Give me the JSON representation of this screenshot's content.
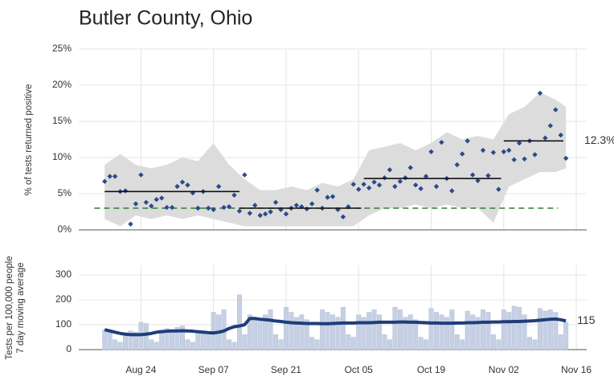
{
  "chart_data": [
    {
      "type": "scatter",
      "title": "Butler County, Ohio",
      "y_label": "% of tests returned positive",
      "x": [
        -7,
        -6,
        -5,
        -4,
        -3,
        -2,
        -1,
        0,
        1,
        2,
        3,
        4,
        5,
        6,
        7,
        8,
        9,
        10,
        11,
        12,
        13,
        14,
        15,
        16,
        17,
        18,
        19,
        20,
        21,
        22,
        23,
        24,
        25,
        26,
        27,
        28,
        29,
        30,
        31,
        32,
        33,
        34,
        35,
        36,
        37,
        38,
        39,
        40,
        41,
        42,
        43,
        44,
        45,
        46,
        47,
        48,
        49,
        50,
        51,
        52,
        53,
        54,
        55,
        56,
        57,
        58,
        59,
        60,
        61,
        62,
        63,
        64,
        65,
        66,
        67,
        68,
        69,
        70,
        71,
        72,
        73,
        74,
        75,
        76,
        77,
        78,
        79,
        80,
        81,
        82
      ],
      "values": [
        6.7,
        7.4,
        7.4,
        5.3,
        5.4,
        0.8,
        3.6,
        7.6,
        3.8,
        3.3,
        4.2,
        4.4,
        3.1,
        3.1,
        6.0,
        6.6,
        6.2,
        5.1,
        3.0,
        5.3,
        3.0,
        2.8,
        6.0,
        3.1,
        3.2,
        4.8,
        2.6,
        7.6,
        2.3,
        3.4,
        2.0,
        2.2,
        2.5,
        3.8,
        2.8,
        2.2,
        3.0,
        3.4,
        3.2,
        2.9,
        3.6,
        5.5,
        3.0,
        4.5,
        4.6,
        2.8,
        1.8,
        3.2,
        6.3,
        5.6,
        6.3,
        5.8,
        6.6,
        6.2,
        7.2,
        8.3,
        6.0,
        6.7,
        7.2,
        8.6,
        6.2,
        5.7,
        7.4,
        10.8,
        6.0,
        12.1,
        7.1,
        5.4,
        9.0,
        10.5,
        12.3,
        7.6,
        6.8,
        11.0,
        7.5,
        10.7,
        5.6,
        10.8,
        11.0,
        9.7,
        12.0,
        9.8,
        12.3,
        10.4,
        18.9,
        12.7,
        14.4,
        16.6,
        13.1,
        9.9
      ],
      "color": "#2a4a8c",
      "band": {
        "x": [
          -7,
          -4,
          -1,
          2,
          5,
          8,
          11,
          14,
          17,
          20,
          23,
          26,
          29,
          32,
          35,
          38,
          41,
          44,
          47,
          50,
          53,
          56,
          59,
          62,
          65,
          68,
          71,
          74,
          77,
          80,
          82
        ],
        "lower": [
          1.5,
          0.5,
          2,
          1.5,
          2,
          1.5,
          2,
          1.5,
          1,
          0.5,
          0.5,
          0.5,
          0.5,
          0.5,
          0.5,
          0.5,
          0.5,
          2,
          3,
          3,
          3.5,
          3,
          3.5,
          3,
          3,
          1,
          6,
          7,
          8,
          8,
          8.5
        ],
        "upper": [
          9,
          10.5,
          9,
          8.5,
          9,
          10,
          9.5,
          12,
          9,
          7,
          5.5,
          5.5,
          6,
          5.5,
          6.5,
          6,
          7,
          11,
          11.5,
          12,
          11,
          12,
          13.5,
          12.5,
          13,
          12.5,
          16,
          17,
          19,
          18,
          17
        ],
        "color": "#dcdcdc"
      },
      "segments": [
        {
          "start": -7,
          "end": 19,
          "value": 5.3
        },
        {
          "start": 19,
          "end": 42.5,
          "value": 3.0
        },
        {
          "start": 43,
          "end": 69.5,
          "value": 7.1
        },
        {
          "start": 70,
          "end": 81.5,
          "value": 12.3,
          "value_label": "12.3%"
        }
      ],
      "baseline": {
        "start": -9,
        "end": 80.5,
        "value": 3.0,
        "color": "#2e7d32"
      },
      "xlim": [
        -12,
        86
      ],
      "ylim": [
        0,
        25
      ],
      "yticks": [
        {
          "value": 0,
          "label": "0%"
        },
        {
          "value": 5,
          "label": "5%"
        },
        {
          "value": 10,
          "label": "10%"
        },
        {
          "value": 15,
          "label": "15%"
        },
        {
          "value": 20,
          "label": "20%"
        },
        {
          "value": 25,
          "label": "25%"
        }
      ],
      "grid": true
    },
    {
      "type": "bar",
      "y_label": [
        "Tests per 100,000 people",
        "7 day moving average"
      ],
      "x": [
        -7,
        -6,
        -5,
        -4,
        -3,
        -2,
        -1,
        0,
        1,
        2,
        3,
        4,
        5,
        6,
        7,
        8,
        9,
        10,
        11,
        12,
        13,
        14,
        15,
        16,
        17,
        18,
        19,
        20,
        21,
        22,
        23,
        24,
        25,
        26,
        27,
        28,
        29,
        30,
        31,
        32,
        33,
        34,
        35,
        36,
        37,
        38,
        39,
        40,
        41,
        42,
        43,
        44,
        45,
        46,
        47,
        48,
        49,
        50,
        51,
        52,
        53,
        54,
        55,
        56,
        57,
        58,
        59,
        60,
        61,
        62,
        63,
        64,
        65,
        66,
        67,
        68,
        69,
        70,
        71,
        72,
        73,
        74,
        75,
        76,
        77,
        78,
        79,
        80,
        81,
        82
      ],
      "values": [
        80,
        70,
        40,
        30,
        60,
        75,
        70,
        110,
        105,
        40,
        30,
        80,
        85,
        75,
        90,
        95,
        40,
        30,
        70,
        75,
        60,
        150,
        140,
        160,
        40,
        30,
        220,
        60,
        140,
        130,
        120,
        140,
        160,
        60,
        40,
        170,
        150,
        130,
        140,
        120,
        50,
        40,
        160,
        150,
        140,
        130,
        170,
        60,
        50,
        140,
        130,
        150,
        160,
        140,
        60,
        40,
        170,
        160,
        130,
        140,
        120,
        50,
        40,
        165,
        150,
        140,
        130,
        160,
        60,
        40,
        155,
        140,
        130,
        160,
        150,
        60,
        40,
        160,
        150,
        175,
        170,
        140,
        50,
        40,
        165,
        155,
        160,
        150,
        60,
        110
      ],
      "average": [
        80,
        75,
        70,
        65,
        62,
        60,
        60,
        60,
        62,
        65,
        70,
        72,
        74,
        75,
        75,
        76,
        75,
        74,
        72,
        70,
        68,
        67,
        70,
        75,
        85,
        92,
        95,
        100,
        125,
        125,
        122,
        120,
        118,
        115,
        113,
        110,
        108,
        107,
        106,
        105,
        105,
        105,
        104,
        104,
        105,
        106,
        107,
        107,
        107,
        108,
        108,
        108,
        109,
        110,
        110,
        110,
        110,
        111,
        111,
        110,
        110,
        109,
        108,
        107,
        107,
        106,
        106,
        106,
        107,
        107,
        108,
        108,
        109,
        110,
        110,
        111,
        111,
        112,
        112,
        113,
        113,
        114,
        115,
        116,
        118,
        120,
        122,
        123,
        120,
        115
      ],
      "average_label": "115",
      "color": "#c6d0e4",
      "line_color": "#1f3d7a",
      "xlim": [
        -12,
        86
      ],
      "xticks": [
        {
          "value": 0,
          "label": "Aug 24"
        },
        {
          "value": 14,
          "label": "Sep 07"
        },
        {
          "value": 28,
          "label": "Sep 21"
        },
        {
          "value": 42,
          "label": "Oct 05"
        },
        {
          "value": 56,
          "label": "Oct 19"
        },
        {
          "value": 70,
          "label": "Nov 02"
        },
        {
          "value": 84,
          "label": "Nov 16"
        }
      ],
      "ylim": [
        0,
        300
      ],
      "yticks": [
        0,
        100,
        200,
        300
      ],
      "grid": true
    }
  ]
}
